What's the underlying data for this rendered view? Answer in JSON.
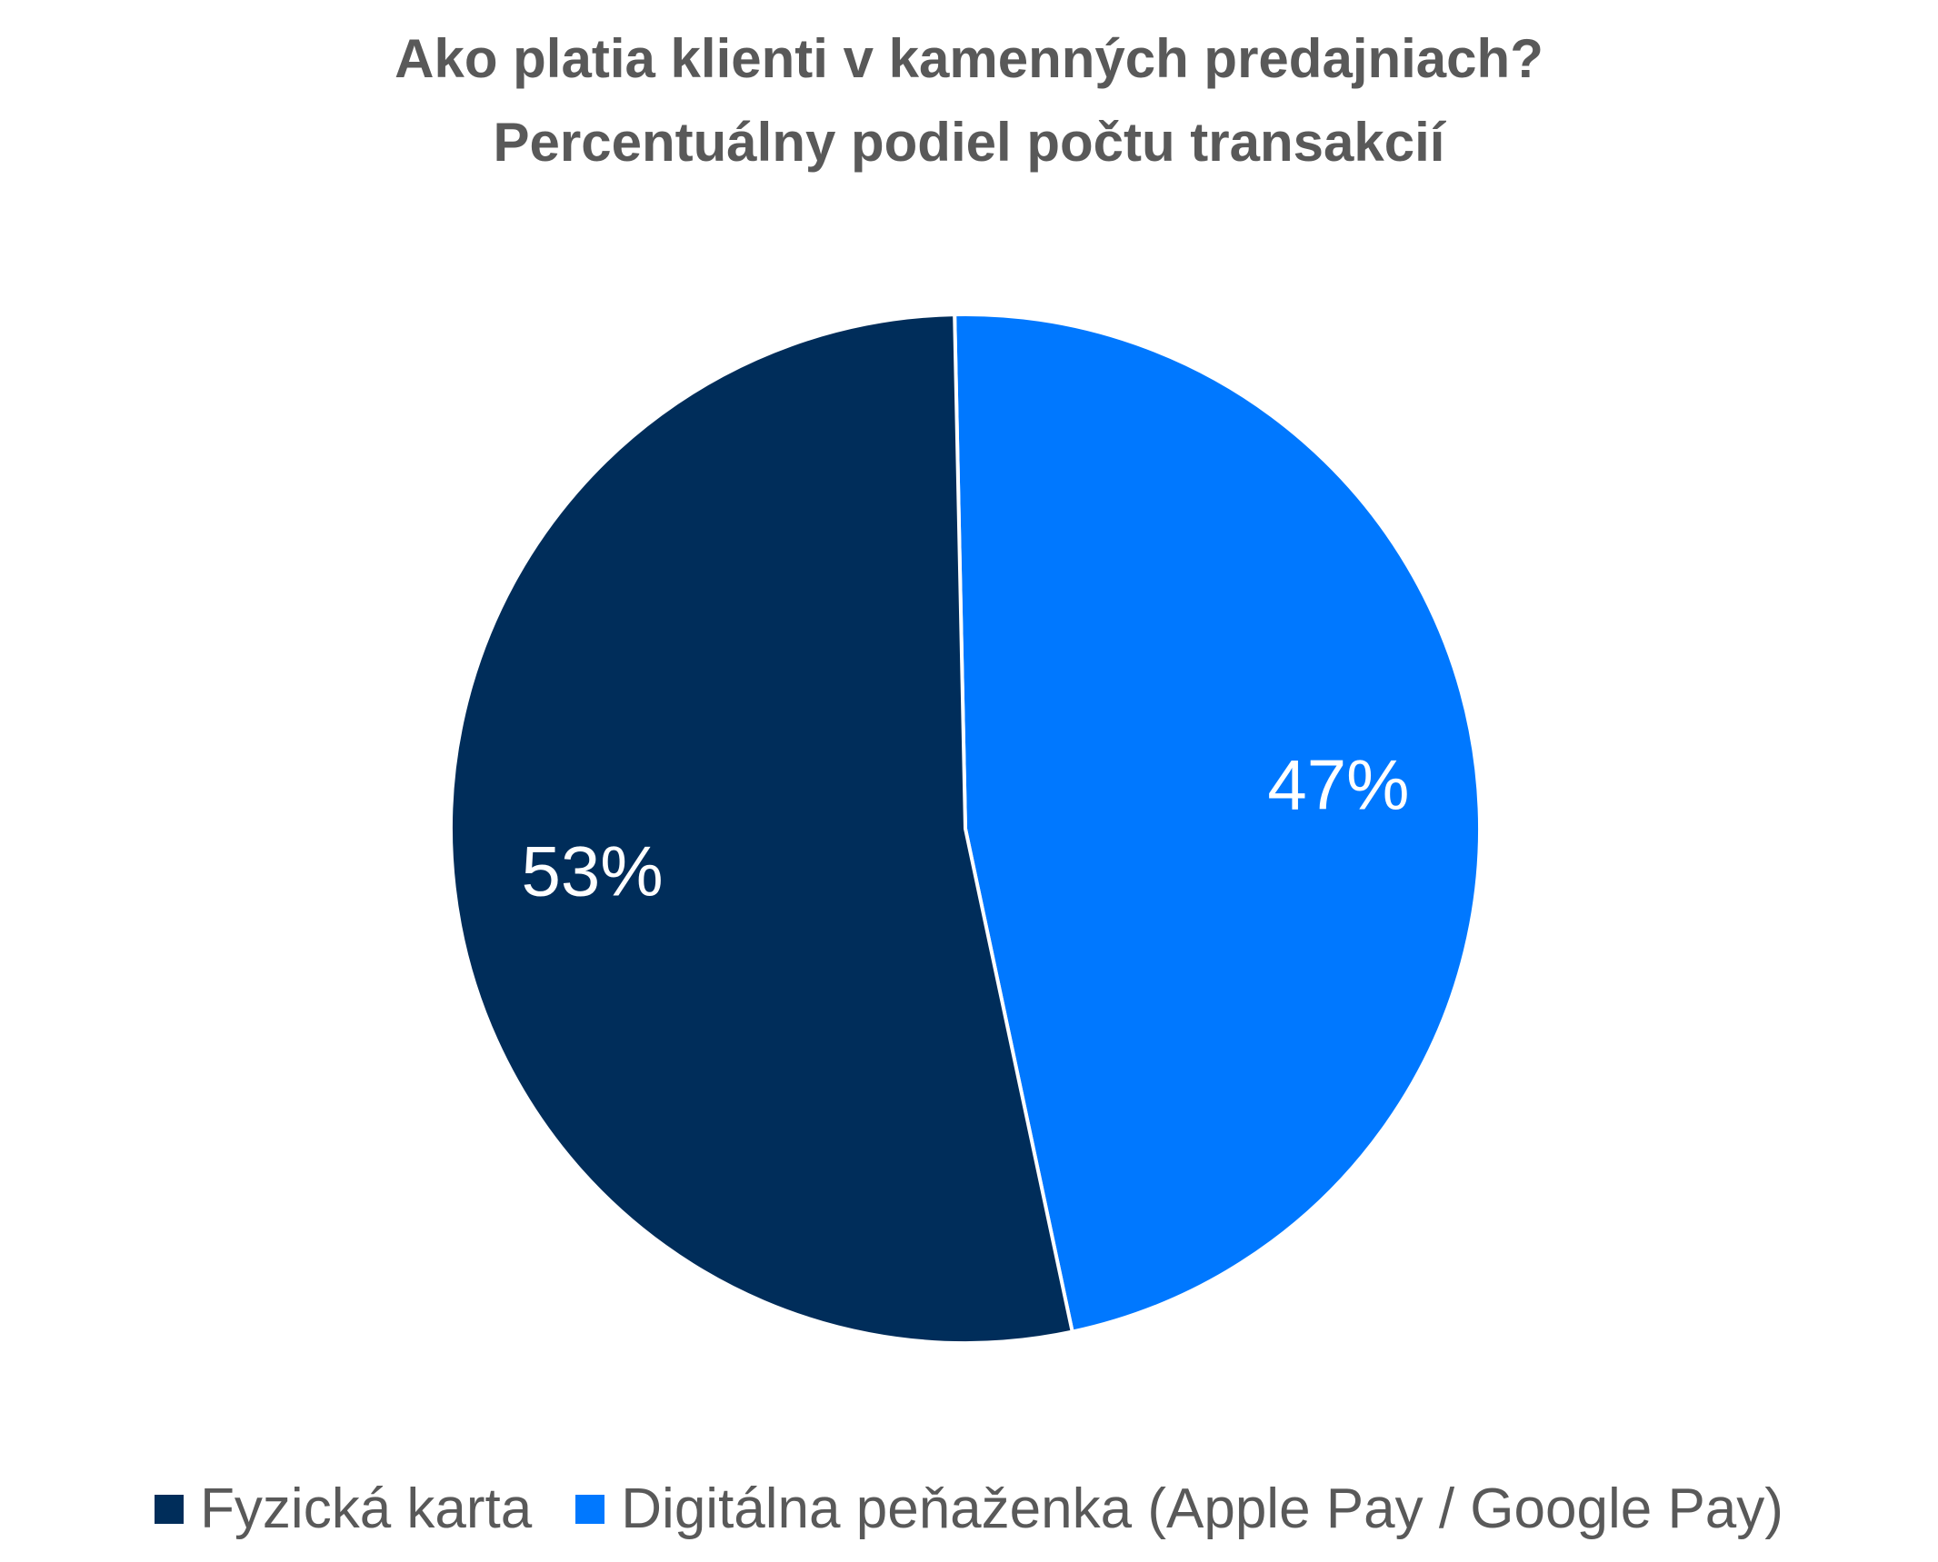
{
  "chart_data": {
    "type": "pie",
    "title": "Ako platia klienti v kamenných predajniach?",
    "subtitle": "Percentuálny podiel počtu transakcií",
    "slices": [
      {
        "name": "Fyzická karta",
        "value": 53,
        "label": "53%",
        "color": "#002D5A"
      },
      {
        "name": "Digitálna peňaženka (Apple Pay / Google Pay)",
        "value": 47,
        "label": "47%",
        "color": "#0078FF"
      }
    ],
    "legend_position": "bottom"
  }
}
